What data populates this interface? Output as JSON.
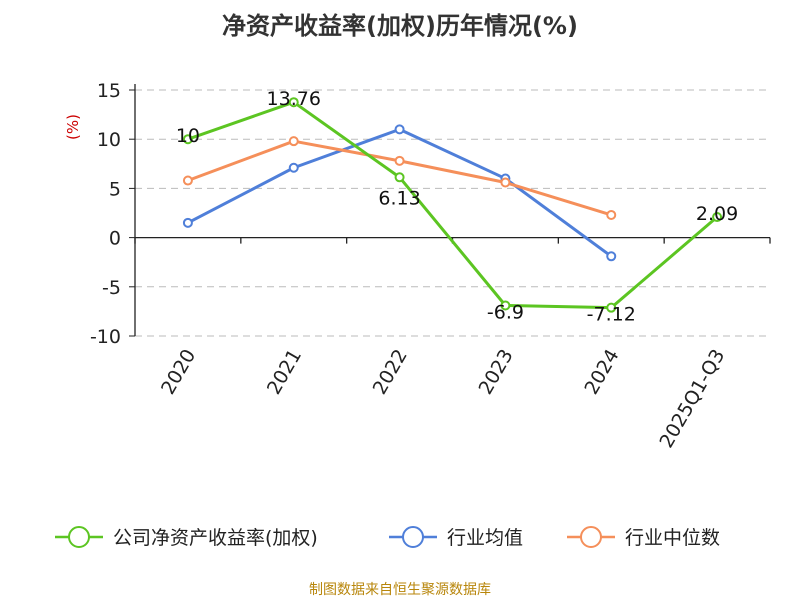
{
  "colors": {
    "company": "#5cc522",
    "industry_avg": "#4f7fd9",
    "industry_median": "#f58f5a",
    "axis": "#222222",
    "grid": "#bbbbbb",
    "source": "#b8860b"
  },
  "chart_data": {
    "type": "line",
    "title": "净资产收益率(加权)历年情况(%)",
    "ylabel": "(%)",
    "xlabel": "",
    "categories": [
      "2020",
      "2021",
      "2022",
      "2023",
      "2024",
      "2025Q1-Q3"
    ],
    "ylim": [
      -10,
      15
    ],
    "yticks": [
      "15",
      "10",
      "5",
      "0",
      "-5",
      "-10"
    ],
    "grid": true,
    "legend_position": "bottom",
    "series": [
      {
        "name": "公司净资产收益率(加权)",
        "values": [
          10,
          13.76,
          6.13,
          -6.9,
          -7.12,
          2.09
        ],
        "labels": [
          "10",
          "13.76",
          "6.13",
          "-6.9",
          "-7.12",
          "2.09"
        ]
      },
      {
        "name": "行业均值",
        "values": [
          1.5,
          7.1,
          11.0,
          6.0,
          -1.9,
          null
        ]
      },
      {
        "name": "行业中位数",
        "values": [
          5.8,
          9.8,
          7.8,
          5.6,
          2.3,
          null
        ]
      }
    ],
    "source": "制图数据来自恒生聚源数据库"
  }
}
